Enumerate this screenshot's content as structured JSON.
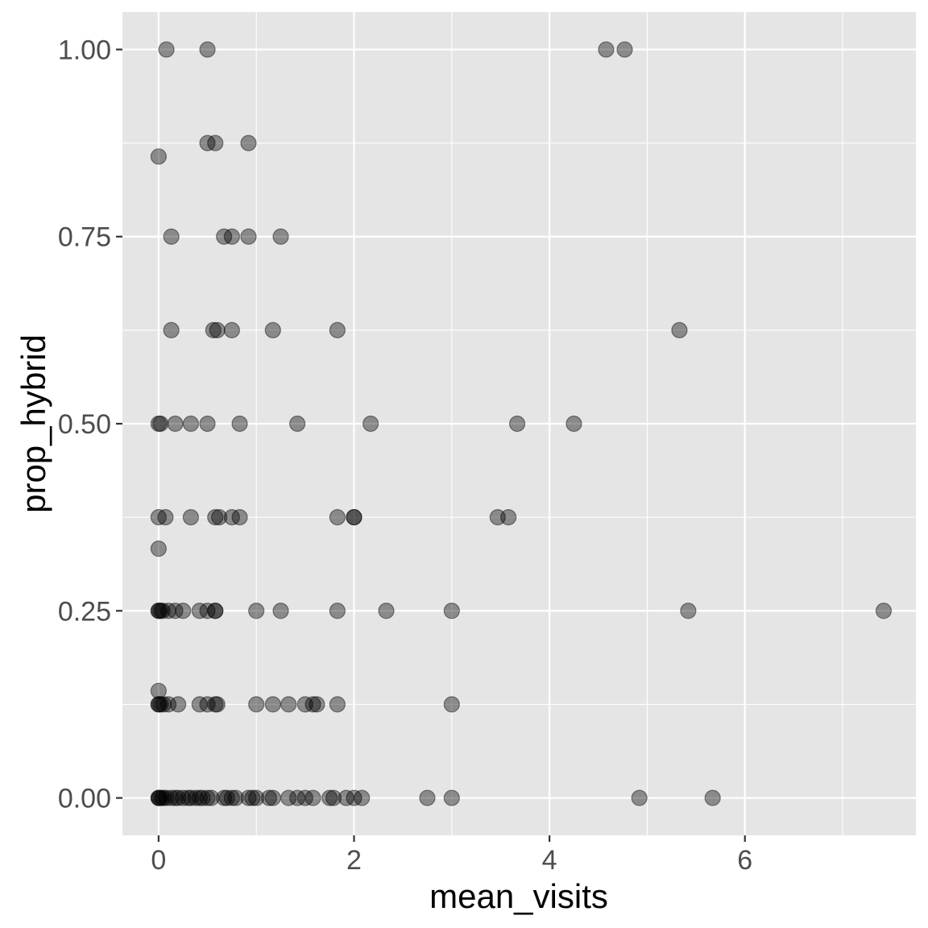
{
  "chart_data": {
    "type": "scatter",
    "title": "",
    "xlabel": "mean_visits",
    "ylabel": "prop_hybrid",
    "xlim": [
      -0.37,
      7.75
    ],
    "ylim": [
      -0.05,
      1.05
    ],
    "x_ticks": [
      0,
      2,
      4,
      6
    ],
    "x_minor": [
      1,
      3,
      5,
      7
    ],
    "y_ticks": [
      0.0,
      0.25,
      0.5,
      0.75,
      1.0
    ],
    "y_tick_labels": [
      "0.00",
      "0.25",
      "0.50",
      "0.75",
      "1.00"
    ],
    "y_minor": [
      0.125,
      0.375,
      0.625,
      0.875
    ],
    "grid": true,
    "legend": "none",
    "colors": {
      "panel": "#e5e5e5",
      "grid": "#ffffff",
      "point": "#000000",
      "tick": "#333333"
    },
    "point_alpha": 0.4,
    "points": [
      {
        "x": 0.08,
        "y": 1.0
      },
      {
        "x": 0.5,
        "y": 1.0
      },
      {
        "x": 4.58,
        "y": 1.0
      },
      {
        "x": 4.77,
        "y": 1.0
      },
      {
        "x": 0.0,
        "y": 0.857
      },
      {
        "x": 0.5,
        "y": 0.875
      },
      {
        "x": 0.58,
        "y": 0.875
      },
      {
        "x": 0.92,
        "y": 0.875
      },
      {
        "x": 0.13,
        "y": 0.75
      },
      {
        "x": 0.67,
        "y": 0.75
      },
      {
        "x": 0.75,
        "y": 0.75
      },
      {
        "x": 0.92,
        "y": 0.75
      },
      {
        "x": 1.25,
        "y": 0.75
      },
      {
        "x": 0.13,
        "y": 0.625
      },
      {
        "x": 0.56,
        "y": 0.625
      },
      {
        "x": 0.6,
        "y": 0.625
      },
      {
        "x": 0.75,
        "y": 0.625
      },
      {
        "x": 1.17,
        "y": 0.625
      },
      {
        "x": 1.83,
        "y": 0.625
      },
      {
        "x": 5.33,
        "y": 0.625
      },
      {
        "x": 0.0,
        "y": 0.5
      },
      {
        "x": 0.02,
        "y": 0.5
      },
      {
        "x": 0.17,
        "y": 0.5
      },
      {
        "x": 0.33,
        "y": 0.5
      },
      {
        "x": 0.5,
        "y": 0.5
      },
      {
        "x": 0.83,
        "y": 0.5
      },
      {
        "x": 1.42,
        "y": 0.5
      },
      {
        "x": 2.17,
        "y": 0.5
      },
      {
        "x": 3.67,
        "y": 0.5
      },
      {
        "x": 4.25,
        "y": 0.5
      },
      {
        "x": 0.0,
        "y": 0.375
      },
      {
        "x": 0.07,
        "y": 0.375
      },
      {
        "x": 0.33,
        "y": 0.375
      },
      {
        "x": 0.58,
        "y": 0.375
      },
      {
        "x": 0.62,
        "y": 0.375
      },
      {
        "x": 0.75,
        "y": 0.375
      },
      {
        "x": 0.83,
        "y": 0.375
      },
      {
        "x": 1.83,
        "y": 0.375
      },
      {
        "x": 2.0,
        "y": 0.375
      },
      {
        "x": 2.0,
        "y": 0.375
      },
      {
        "x": 3.47,
        "y": 0.375
      },
      {
        "x": 3.58,
        "y": 0.375
      },
      {
        "x": 0.0,
        "y": 0.333
      },
      {
        "x": 0.0,
        "y": 0.25
      },
      {
        "x": 0.0,
        "y": 0.25
      },
      {
        "x": 0.02,
        "y": 0.25
      },
      {
        "x": 0.04,
        "y": 0.25
      },
      {
        "x": 0.1,
        "y": 0.25
      },
      {
        "x": 0.17,
        "y": 0.25
      },
      {
        "x": 0.25,
        "y": 0.25
      },
      {
        "x": 0.42,
        "y": 0.25
      },
      {
        "x": 0.5,
        "y": 0.25
      },
      {
        "x": 0.58,
        "y": 0.25
      },
      {
        "x": 0.58,
        "y": 0.25
      },
      {
        "x": 1.0,
        "y": 0.25
      },
      {
        "x": 1.25,
        "y": 0.25
      },
      {
        "x": 1.83,
        "y": 0.25
      },
      {
        "x": 2.33,
        "y": 0.25
      },
      {
        "x": 3.0,
        "y": 0.25
      },
      {
        "x": 5.42,
        "y": 0.25
      },
      {
        "x": 7.42,
        "y": 0.25
      },
      {
        "x": 0.0,
        "y": 0.143
      },
      {
        "x": 0.0,
        "y": 0.125
      },
      {
        "x": 0.0,
        "y": 0.125
      },
      {
        "x": 0.02,
        "y": 0.125
      },
      {
        "x": 0.05,
        "y": 0.125
      },
      {
        "x": 0.1,
        "y": 0.125
      },
      {
        "x": 0.2,
        "y": 0.125
      },
      {
        "x": 0.42,
        "y": 0.125
      },
      {
        "x": 0.5,
        "y": 0.125
      },
      {
        "x": 0.58,
        "y": 0.125
      },
      {
        "x": 0.6,
        "y": 0.125
      },
      {
        "x": 1.0,
        "y": 0.125
      },
      {
        "x": 1.17,
        "y": 0.125
      },
      {
        "x": 1.33,
        "y": 0.125
      },
      {
        "x": 1.5,
        "y": 0.125
      },
      {
        "x": 1.58,
        "y": 0.125
      },
      {
        "x": 1.62,
        "y": 0.125
      },
      {
        "x": 1.83,
        "y": 0.125
      },
      {
        "x": 3.0,
        "y": 0.125
      },
      {
        "x": 0.0,
        "y": 0.0
      },
      {
        "x": 0.0,
        "y": 0.0
      },
      {
        "x": 0.01,
        "y": 0.0
      },
      {
        "x": 0.03,
        "y": 0.0
      },
      {
        "x": 0.05,
        "y": 0.0
      },
      {
        "x": 0.08,
        "y": 0.0
      },
      {
        "x": 0.13,
        "y": 0.0
      },
      {
        "x": 0.17,
        "y": 0.0
      },
      {
        "x": 0.2,
        "y": 0.0
      },
      {
        "x": 0.25,
        "y": 0.0
      },
      {
        "x": 0.3,
        "y": 0.0
      },
      {
        "x": 0.33,
        "y": 0.0
      },
      {
        "x": 0.38,
        "y": 0.0
      },
      {
        "x": 0.42,
        "y": 0.0
      },
      {
        "x": 0.45,
        "y": 0.0
      },
      {
        "x": 0.5,
        "y": 0.0
      },
      {
        "x": 0.54,
        "y": 0.0
      },
      {
        "x": 0.67,
        "y": 0.0
      },
      {
        "x": 0.7,
        "y": 0.0
      },
      {
        "x": 0.75,
        "y": 0.0
      },
      {
        "x": 0.79,
        "y": 0.0
      },
      {
        "x": 0.92,
        "y": 0.0
      },
      {
        "x": 0.96,
        "y": 0.0
      },
      {
        "x": 1.0,
        "y": 0.0
      },
      {
        "x": 1.13,
        "y": 0.0
      },
      {
        "x": 1.17,
        "y": 0.0
      },
      {
        "x": 1.33,
        "y": 0.0
      },
      {
        "x": 1.42,
        "y": 0.0
      },
      {
        "x": 1.5,
        "y": 0.0
      },
      {
        "x": 1.58,
        "y": 0.0
      },
      {
        "x": 1.75,
        "y": 0.0
      },
      {
        "x": 1.79,
        "y": 0.0
      },
      {
        "x": 1.92,
        "y": 0.0
      },
      {
        "x": 2.0,
        "y": 0.0
      },
      {
        "x": 2.08,
        "y": 0.0
      },
      {
        "x": 2.75,
        "y": 0.0
      },
      {
        "x": 3.0,
        "y": 0.0
      },
      {
        "x": 4.92,
        "y": 0.0
      },
      {
        "x": 5.67,
        "y": 0.0
      }
    ]
  }
}
